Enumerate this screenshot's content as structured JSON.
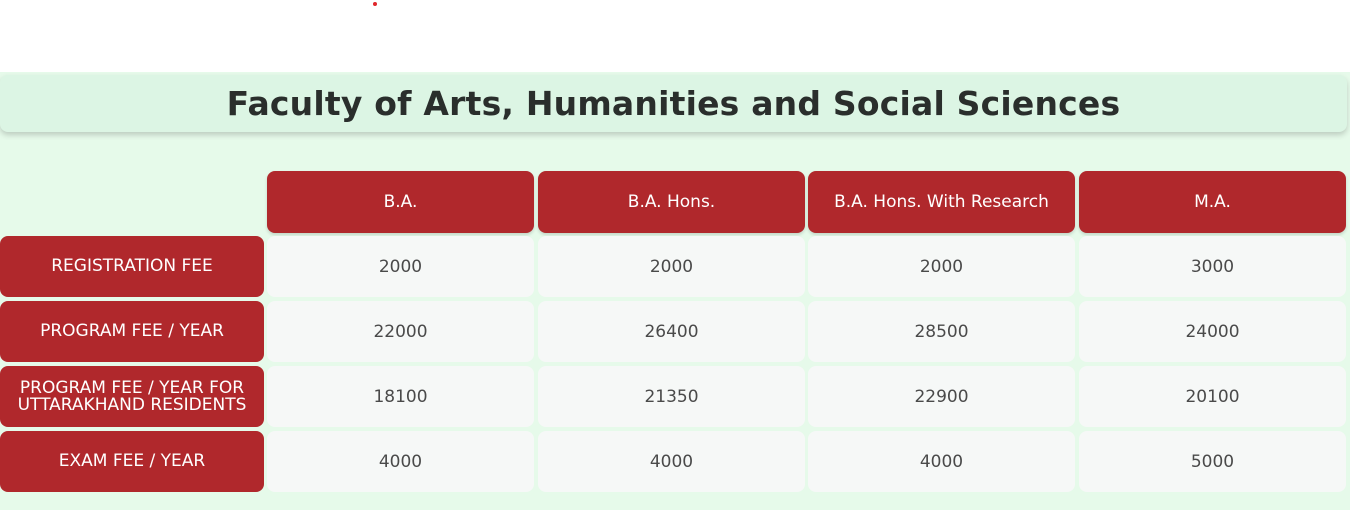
{
  "section_title": "Faculty of Arts, Humanities and Social Sciences",
  "accent_color": "#b0282c",
  "background_color": "#e6faea",
  "table": {
    "columns": [
      "B.A.",
      "B.A. Hons.",
      "B.A. Hons. With Research",
      "M.A."
    ],
    "rows": [
      {
        "label": "REGISTRATION FEE",
        "values": [
          "2000",
          "2000",
          "2000",
          "3000"
        ]
      },
      {
        "label": "PROGRAM FEE / YEAR",
        "values": [
          "22000",
          "26400",
          "28500",
          "24000"
        ]
      },
      {
        "label": "PROGRAM FEE / YEAR FOR UTTARAKHAND RESIDENTS",
        "values": [
          "18100",
          "21350",
          "22900",
          "20100"
        ]
      },
      {
        "label": "EXAM FEE / YEAR",
        "values": [
          "4000",
          "4000",
          "4000",
          "5000"
        ]
      }
    ]
  }
}
